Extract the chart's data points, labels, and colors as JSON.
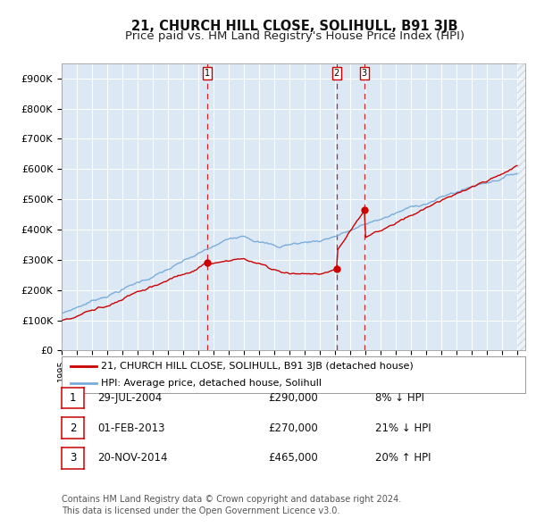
{
  "title": "21, CHURCH HILL CLOSE, SOLIHULL, B91 3JB",
  "subtitle": "Price paid vs. HM Land Registry's House Price Index (HPI)",
  "background_color": "#dce9f5",
  "red_line_color": "#cc0000",
  "blue_line_color": "#7aaddb",
  "ylim": [
    0,
    950000
  ],
  "yticks": [
    0,
    100000,
    200000,
    300000,
    400000,
    500000,
    600000,
    700000,
    800000,
    900000
  ],
  "ytick_labels": [
    "£0",
    "£100K",
    "£200K",
    "£300K",
    "£400K",
    "£500K",
    "£600K",
    "£700K",
    "£800K",
    "£900K"
  ],
  "sale_dates": [
    2004.57,
    2013.08,
    2014.9
  ],
  "sale_prices": [
    290000,
    270000,
    465000
  ],
  "legend_entries": [
    "21, CHURCH HILL CLOSE, SOLIHULL, B91 3JB (detached house)",
    "HPI: Average price, detached house, Solihull"
  ],
  "table_rows": [
    {
      "num": "1",
      "date": "29-JUL-2004",
      "price": "£290,000",
      "relation": "8% ↓ HPI"
    },
    {
      "num": "2",
      "date": "01-FEB-2013",
      "price": "£270,000",
      "relation": "21% ↓ HPI"
    },
    {
      "num": "3",
      "date": "20-NOV-2014",
      "price": "£465,000",
      "relation": "20% ↑ HPI"
    }
  ],
  "footnote": "Contains HM Land Registry data © Crown copyright and database right 2024.\nThis data is licensed under the Open Government Licence v3.0.",
  "title_fontsize": 10.5,
  "subtitle_fontsize": 9.5,
  "tick_fontsize": 8,
  "legend_fontsize": 8,
  "table_fontsize": 8.5,
  "footnote_fontsize": 7
}
